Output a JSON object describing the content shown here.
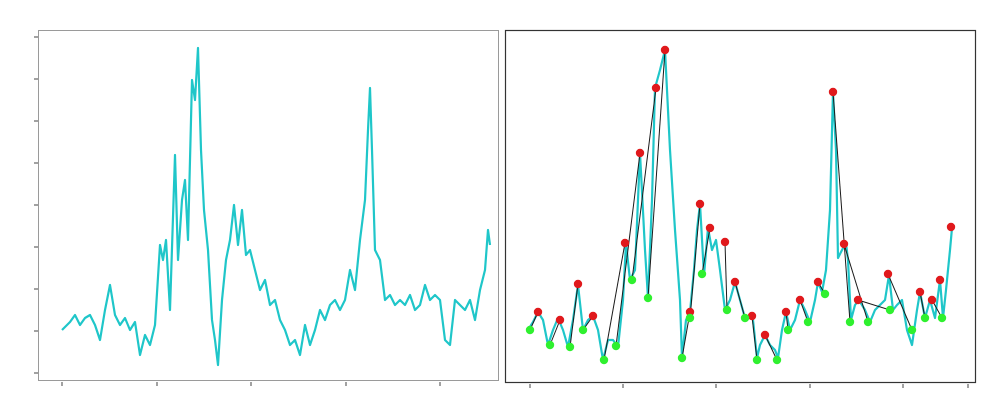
{
  "chart_data": [
    {
      "type": "line",
      "xlim": [
        -24,
        436
      ],
      "ylim": [
        -7,
        343
      ],
      "xticks": [
        0,
        95,
        189,
        284,
        378
      ],
      "yticks": [
        0,
        42,
        84,
        126,
        168,
        210,
        252,
        294,
        336
      ],
      "series": [
        {
          "color": "#1fc6c9",
          "x": [
            0,
            8,
            13,
            18,
            23,
            28,
            33,
            38,
            43,
            48,
            53,
            58,
            63,
            68,
            73,
            78,
            83,
            88,
            93,
            98,
            101,
            104,
            108,
            113,
            116,
            120,
            123,
            126,
            130,
            133,
            136,
            139,
            142,
            146,
            150,
            153,
            156,
            160,
            164,
            168,
            172,
            176,
            180,
            184,
            188,
            193,
            198,
            203,
            208,
            213,
            218,
            223,
            228,
            233,
            238,
            243,
            248,
            253,
            258,
            263,
            268,
            273,
            278,
            283,
            288,
            293,
            298,
            303,
            306,
            308,
            310,
            313,
            318,
            323,
            328,
            333,
            338,
            343,
            348,
            353,
            358,
            363,
            368,
            373,
            378,
            383,
            388,
            393,
            398,
            403,
            408,
            413,
            418,
            423,
            426,
            428
          ],
          "values": [
            43,
            51,
            58,
            48,
            55,
            58,
            48,
            33,
            63,
            88,
            58,
            48,
            55,
            43,
            51,
            18,
            38,
            28,
            48,
            128,
            113,
            133,
            63,
            218,
            113,
            173,
            193,
            133,
            293,
            273,
            325,
            223,
            163,
            123,
            53,
            33,
            8,
            73,
            113,
            133,
            168,
            128,
            163,
            118,
            123,
            103,
            83,
            93,
            68,
            73,
            53,
            43,
            28,
            33,
            18,
            48,
            28,
            43,
            63,
            53,
            68,
            73,
            63,
            73,
            103,
            83,
            133,
            173,
            243,
            285,
            223,
            123,
            113,
            73,
            78,
            68,
            73,
            68,
            78,
            63,
            68,
            88,
            73,
            78,
            73,
            33,
            28,
            73,
            68,
            63,
            73,
            53,
            83,
            103,
            143,
            128
          ]
        }
      ]
    },
    {
      "type": "line",
      "xlim": [
        -25,
        445
      ],
      "ylim": [
        0,
        352
      ],
      "xticks": [
        0,
        93,
        186,
        280,
        373,
        438
      ],
      "connectors": "#1a1a1a",
      "series": [
        {
          "color": "#1fc6c9",
          "x": [
            -2,
            3,
            8,
            13,
            18,
            23,
            28,
            33,
            38,
            43,
            48,
            53,
            58,
            63,
            68,
            73,
            78,
            83,
            88,
            93,
            96,
            100,
            105,
            110,
            115,
            118,
            122,
            125,
            130,
            135,
            140,
            145,
            150,
            152,
            156,
            160,
            164,
            167,
            170,
            174,
            178,
            182,
            186,
            190,
            195,
            200,
            205,
            210,
            215,
            220,
            223,
            227,
            230,
            235,
            240,
            245,
            248,
            252,
            256,
            260,
            265,
            270,
            275,
            280,
            285,
            288,
            292,
            296,
            300,
            303,
            306,
            308,
            312,
            316,
            318,
            321,
            325,
            329,
            335,
            340,
            345,
            350,
            355,
            359,
            363,
            367,
            372,
            377,
            382,
            387,
            390,
            395,
            400,
            405,
            410,
            413,
            416,
            420,
            422
          ],
          "values": [
            52,
            60,
            70,
            62,
            37,
            52,
            64,
            52,
            35,
            62,
            97,
            52,
            62,
            66,
            52,
            22,
            42,
            42,
            35,
            82,
            139,
            102,
            112,
            229,
            132,
            84,
            182,
            294,
            312,
            332,
            232,
            152,
            82,
            24,
            62,
            70,
            112,
            152,
            178,
            107,
            154,
            132,
            142,
            112,
            72,
            82,
            100,
            82,
            64,
            66,
            62,
            24,
            37,
            47,
            37,
            32,
            24,
            52,
            70,
            52,
            62,
            82,
            72,
            60,
            82,
            100,
            90,
            112,
            172,
            290,
            232,
            124,
            132,
            139,
            122,
            62,
            77,
            82,
            72,
            60,
            72,
            77,
            82,
            107,
            72,
            77,
            82,
            52,
            37,
            72,
            90,
            64,
            82,
            64,
            102,
            64,
            92,
            132,
            154
          ]
        },
        {
          "color": "#e0191c",
          "marker": "dot",
          "x": [
            8,
            30,
            48,
            63,
            95,
            110,
            126,
            135,
            160,
            170,
            180,
            195,
            205,
            222,
            235,
            256,
            270,
            288,
            303,
            314,
            328,
            358,
            390,
            402,
            410,
            421
          ],
          "values": [
            70,
            62,
            98,
            66,
            139,
            229,
            294,
            332,
            70,
            178,
            154,
            140,
            100,
            66,
            47,
            70,
            82,
            100,
            290,
            138,
            82,
            108,
            90,
            82,
            102,
            155
          ]
        },
        {
          "color": "#2ff02f",
          "marker": "dot",
          "x": [
            0,
            20,
            40,
            53,
            74,
            86,
            102,
            118,
            152,
            160,
            172,
            197,
            215,
            227,
            247,
            258,
            278,
            295,
            320,
            338,
            360,
            382,
            395,
            412
          ],
          "values": [
            52,
            37,
            35,
            52,
            22,
            36,
            102,
            84,
            24,
            64,
            108,
            72,
            64,
            22,
            22,
            52,
            60,
            88,
            60,
            60,
            72,
            52,
            64,
            64
          ]
        }
      ]
    }
  ]
}
